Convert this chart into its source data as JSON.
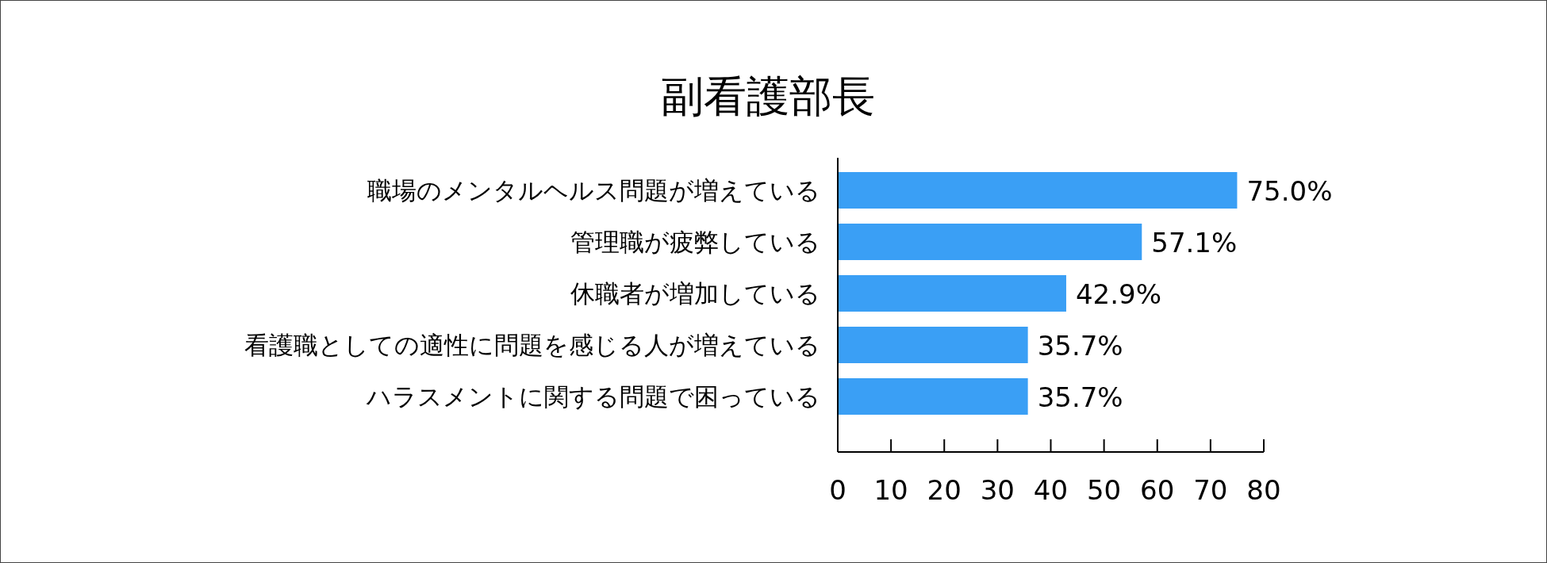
{
  "chart_data": {
    "type": "bar",
    "orientation": "horizontal",
    "title": "副看護部長",
    "categories": [
      "職場のメンタルヘルス問題が増えている",
      "管理職が疲弊している",
      "休職者が増加している",
      "看護職としての適性に問題を感じる人が増えている",
      "ハラスメントに関する問題で困っている"
    ],
    "values": [
      75.0,
      57.1,
      42.9,
      35.7,
      35.7
    ],
    "value_labels": [
      "75.0%",
      "57.1%",
      "42.9%",
      "35.7%",
      "35.7%"
    ],
    "color": "#3a9ff5",
    "xlim": [
      0,
      80
    ],
    "xticks": [
      0,
      10,
      20,
      30,
      40,
      50,
      60,
      70,
      80
    ],
    "grid": false
  }
}
